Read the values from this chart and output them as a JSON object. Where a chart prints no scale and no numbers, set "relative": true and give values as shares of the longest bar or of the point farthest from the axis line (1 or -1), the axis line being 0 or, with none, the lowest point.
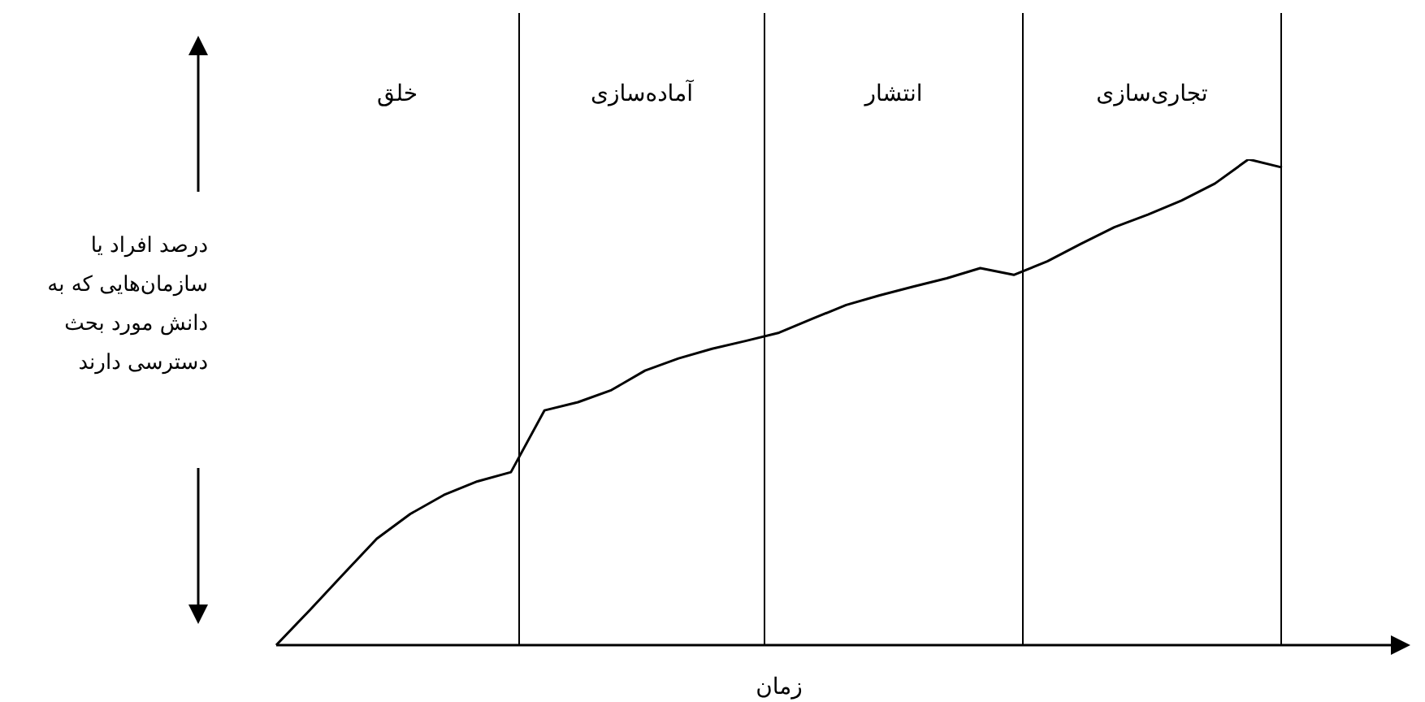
{
  "chart_data": {
    "type": "line",
    "relative": true,
    "xlabel": "زمان",
    "ylabel": "درصد افراد یا سازمان‌هایی که به دانش مورد بحث دسترسی دارند",
    "grid": false,
    "legend": false,
    "marker": "none",
    "line_style": "solid",
    "categories": [
      null,
      null,
      null,
      null,
      null,
      null,
      null,
      null,
      null,
      null,
      null,
      null,
      null,
      null,
      null,
      null,
      null,
      null,
      null,
      null,
      null,
      null,
      null,
      null,
      null,
      null,
      null,
      null,
      null,
      null,
      null
    ],
    "series": [
      {
        "color": "#000000",
        "values": [
          0,
          0.072,
          0.146,
          0.219,
          0.27,
          0.309,
          0.337,
          0.356,
          0.483,
          0.5,
          0.525,
          0.565,
          0.59,
          0.61,
          0.626,
          0.643,
          0.672,
          0.7,
          0.72,
          0.738,
          0.755,
          0.776,
          0.762,
          0.79,
          0.826,
          0.86,
          0.886,
          0.915,
          0.95,
          1,
          0.983
        ]
      }
    ],
    "annotations": [
      "خلق",
      "آماده‌سازی",
      "انتشار",
      "تجاری‌سازی"
    ]
  }
}
